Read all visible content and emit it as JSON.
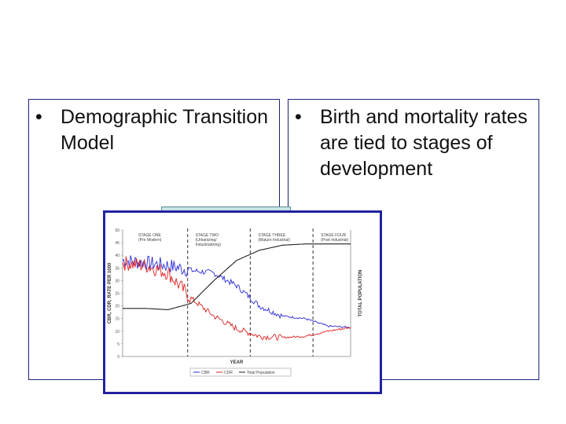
{
  "slide": {
    "left_bullet": {
      "marker": "•",
      "text": "Demographic Transition Model"
    },
    "right_bullet": {
      "marker": "•",
      "text": "Birth and mortality rates are tied to stages of development"
    }
  },
  "colors": {
    "border": "#1a237e",
    "cbr": "#2b2bd6",
    "cdr": "#e02020",
    "total": "#222222",
    "teal": "#c9e3e6"
  },
  "chart_data": {
    "type": "line",
    "xlabel": "YEAR",
    "ylabel": "CBR, CDR, RATE PER 1000",
    "y2label": "TOTAL POPULATION",
    "ylim": [
      0,
      50
    ],
    "yticks": [
      "0",
      "5",
      "10",
      "15",
      "20",
      "25",
      "30",
      "35",
      "40",
      "45",
      "50"
    ],
    "stages": [
      {
        "line1": "STAGE ONE",
        "line2": "(Pre Modern)"
      },
      {
        "line1": "STAGE TWO",
        "line2": "(Urbanizing/",
        "line3": "Industrializing)"
      },
      {
        "line1": "STAGE THREE",
        "line2": "(Mature Industrial)"
      },
      {
        "line1": "STAGE FOUR",
        "line2": "(Post Industrial)"
      }
    ],
    "x": [
      0,
      10,
      20,
      30,
      40,
      50,
      60,
      70,
      80,
      90,
      100
    ],
    "series": [
      {
        "name": "CBR",
        "values": [
          38,
          37,
          36,
          34,
          33,
          28,
          20,
          16,
          15,
          12,
          11.5
        ]
      },
      {
        "name": "CDR",
        "values": [
          37,
          36,
          33,
          23,
          16,
          11,
          8,
          7.5,
          8,
          10,
          11.5
        ]
      },
      {
        "name": "Total Population",
        "values": [
          19,
          19,
          18.5,
          21,
          30,
          38,
          42,
          44,
          44.5,
          44.5,
          44.5
        ]
      }
    ],
    "legend": [
      "CBR",
      "CDR",
      "Total Population"
    ]
  }
}
